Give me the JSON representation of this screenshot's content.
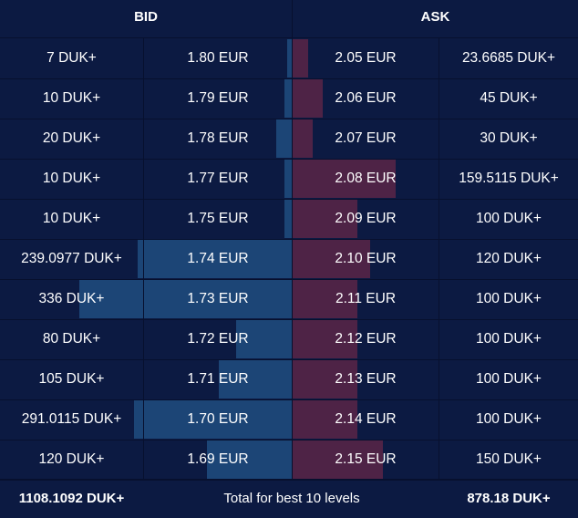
{
  "header": {
    "bid": "BID",
    "ask": "ASK"
  },
  "rows": [
    {
      "bid_qty": "7 DUK+",
      "bid_price": "1.80 EUR",
      "ask_price": "2.05 EUR",
      "ask_qty": "23.6685 DUK+",
      "bid_fill": 0.023,
      "ask_fill": 0.059
    },
    {
      "bid_qty": "10 DUK+",
      "bid_price": "1.79 EUR",
      "ask_price": "2.06 EUR",
      "ask_qty": "45 DUK+",
      "bid_fill": 0.033,
      "ask_fill": 0.117
    },
    {
      "bid_qty": "20 DUK+",
      "bid_price": "1.78 EUR",
      "ask_price": "2.07 EUR",
      "ask_qty": "30 DUK+",
      "bid_fill": 0.073,
      "ask_fill": 0.077
    },
    {
      "bid_qty": "10 DUK+",
      "bid_price": "1.77 EUR",
      "ask_price": "2.08 EUR",
      "ask_qty": "159.5115 DUK+",
      "bid_fill": 0.033,
      "ask_fill": 0.402
    },
    {
      "bid_qty": "10 DUK+",
      "bid_price": "1.75 EUR",
      "ask_price": "2.09 EUR",
      "ask_qty": "100 DUK+",
      "bid_fill": 0.033,
      "ask_fill": 0.252
    },
    {
      "bid_qty": "239.0977 DUK+",
      "bid_price": "1.74 EUR",
      "ask_price": "2.10 EUR",
      "ask_qty": "120 DUK+",
      "bid_fill": 0.726,
      "ask_fill": 0.302
    },
    {
      "bid_qty": "336 DUK+",
      "bid_price": "1.73 EUR",
      "ask_price": "2.11 EUR",
      "ask_qty": "100 DUK+",
      "bid_fill": 1.0,
      "ask_fill": 0.252
    },
    {
      "bid_qty": "80 DUK+",
      "bid_price": "1.72 EUR",
      "ask_price": "2.12 EUR",
      "ask_qty": "100 DUK+",
      "bid_fill": 0.262,
      "ask_fill": 0.252
    },
    {
      "bid_qty": "105 DUK+",
      "bid_price": "1.71 EUR",
      "ask_price": "2.13 EUR",
      "ask_qty": "100 DUK+",
      "bid_fill": 0.344,
      "ask_fill": 0.252
    },
    {
      "bid_qty": "291.0115 DUK+",
      "bid_price": "1.70 EUR",
      "ask_price": "2.14 EUR",
      "ask_qty": "100 DUK+",
      "bid_fill": 0.744,
      "ask_fill": 0.252
    },
    {
      "bid_qty": "120 DUK+",
      "bid_price": "1.69 EUR",
      "ask_price": "2.15 EUR",
      "ask_qty": "150 DUK+",
      "bid_fill": 0.397,
      "ask_fill": 0.352
    }
  ],
  "footer": {
    "bid_total": "1108.1092 DUK+",
    "label": "Total for best 10 levels",
    "ask_total": "878.18 DUK+"
  },
  "colors": {
    "background": "#0c1a42",
    "bid_bar": "#1c4576",
    "ask_bar": "#4e2346",
    "divider": "#07102e"
  }
}
